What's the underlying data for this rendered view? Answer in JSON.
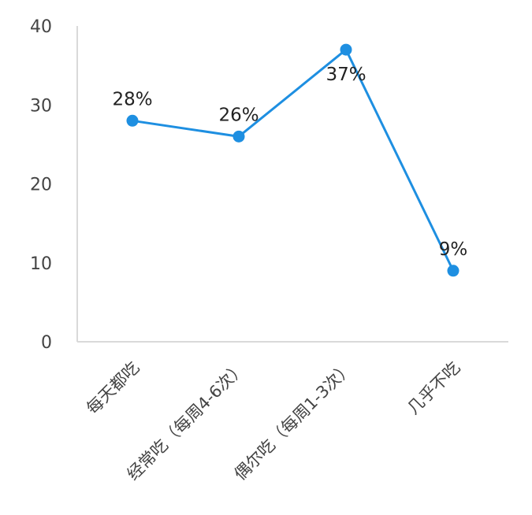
{
  "chart_data": {
    "type": "line",
    "categories": [
      "每天都吃",
      "经常吃（每周4-6次）",
      "偶尔吃（每周1-3次）",
      "几乎不吃"
    ],
    "values": [
      28,
      26,
      37,
      9
    ],
    "data_labels": [
      "28%",
      "26%",
      "37%",
      "9%"
    ],
    "y_ticks": [
      "0",
      "10",
      "20",
      "30",
      "40"
    ],
    "ylim": [
      0,
      40
    ],
    "grid": false,
    "title": "",
    "xlabel": "",
    "ylabel": ""
  },
  "colors": {
    "line": "#1e8fe1",
    "axis": "#d9d9d9",
    "text": "#444444"
  }
}
